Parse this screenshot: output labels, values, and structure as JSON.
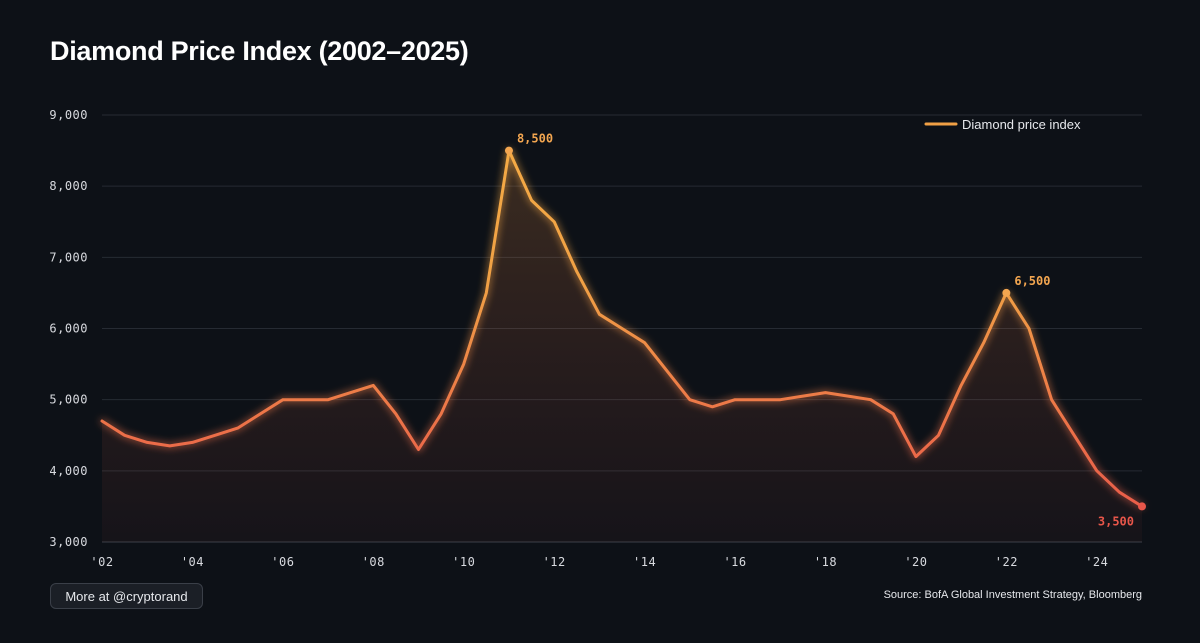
{
  "colors": {
    "background": "#0d1117",
    "line_low": "#e8564a",
    "line_high": "#f0a045",
    "grid": "#262b33",
    "peak_annotation": "#f3a650",
    "end_annotation": "#e8564a"
  },
  "chart_data": {
    "type": "line",
    "title": "Diamond Price Index (2002–2025)",
    "xlabel": "",
    "ylabel": "",
    "xlim": [
      2002,
      2025
    ],
    "ylim": [
      3000,
      9000
    ],
    "yticks": [
      3000,
      4000,
      5000,
      6000,
      7000,
      8000,
      9000
    ],
    "ytick_labels": [
      "3,000",
      "4,000",
      "5,000",
      "6,000",
      "7,000",
      "8,000",
      "9,000"
    ],
    "xticks": [
      2002,
      2004,
      2006,
      2008,
      2010,
      2012,
      2014,
      2016,
      2018,
      2020,
      2022,
      2024
    ],
    "xtick_labels": [
      "'02",
      "'04",
      "'06",
      "'08",
      "'10",
      "'12",
      "'14",
      "'16",
      "'18",
      "'20",
      "'22",
      "'24"
    ],
    "grid": true,
    "legend": {
      "position": "top-right"
    },
    "series": [
      {
        "name": "Diamond price index",
        "x": [
          2002,
          2002.5,
          2003,
          2003.5,
          2004,
          2004.5,
          2005,
          2005.5,
          2006,
          2006.5,
          2007,
          2007.5,
          2008,
          2008.5,
          2009,
          2009.5,
          2010,
          2010.5,
          2011,
          2011.5,
          2012,
          2012.5,
          2013,
          2013.5,
          2014,
          2014.5,
          2015,
          2015.5,
          2016,
          2016.5,
          2017,
          2017.5,
          2018,
          2018.5,
          2019,
          2019.5,
          2020,
          2020.5,
          2021,
          2021.5,
          2022,
          2022.5,
          2023,
          2023.5,
          2024,
          2024.5,
          2025
        ],
        "values": [
          4700,
          4500,
          4400,
          4350,
          4400,
          4500,
          4600,
          4800,
          5000,
          5000,
          5000,
          5100,
          5200,
          4800,
          4300,
          4800,
          5500,
          6500,
          8500,
          7800,
          7500,
          6800,
          6200,
          6000,
          5800,
          5400,
          5000,
          4900,
          5000,
          5000,
          5000,
          5050,
          5100,
          5050,
          5000,
          4800,
          4200,
          4500,
          5200,
          5800,
          6500,
          6000,
          5000,
          4500,
          4000,
          3700,
          3500
        ]
      }
    ],
    "annotations": [
      {
        "x": 2011,
        "y": 8500,
        "label": "8,500"
      },
      {
        "x": 2022,
        "y": 6500,
        "label": "6,500"
      },
      {
        "x": 2025,
        "y": 3500,
        "label": "3,500"
      }
    ]
  },
  "footer": {
    "more_label": "More at @cryptorand",
    "source": "Source: BofA Global Investment Strategy, Bloomberg"
  }
}
